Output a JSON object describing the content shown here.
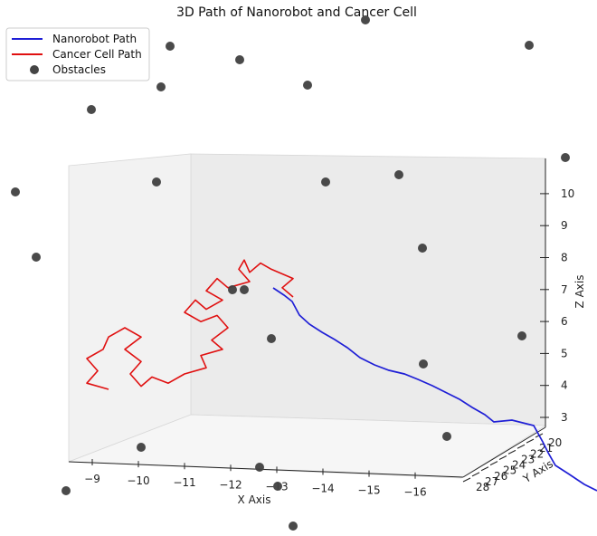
{
  "chart_data": {
    "type": "line3d",
    "title": "3D Path of Nanorobot and Cancer Cell",
    "xlabel": "X Axis",
    "ylabel": "Y Axis",
    "zlabel": "Z Axis",
    "x_ticks": [
      "−9",
      "−10",
      "−11",
      "−12",
      "−13",
      "−14",
      "−15",
      "−16"
    ],
    "y_ticks": [
      "20",
      "21",
      "22",
      "23",
      "24",
      "25",
      "26",
      "27",
      "28"
    ],
    "z_ticks": [
      "3",
      "4",
      "5",
      "6",
      "7",
      "8",
      "9",
      "10"
    ],
    "legend": {
      "position": "top-left",
      "entries": [
        {
          "label": "Nanorobot Path",
          "color": "#1f1fd6",
          "kind": "line"
        },
        {
          "label": "Cancer Cell Path",
          "color": "#e01010",
          "kind": "line"
        },
        {
          "label": "Obstacles",
          "color": "#444444",
          "kind": "marker"
        }
      ]
    },
    "series": [
      {
        "name": "Nanorobot Path",
        "color": "#1f1fd6",
        "points": [
          [
            -12.6,
            20.0,
            7.0
          ],
          [
            -12.8,
            20.3,
            6.8
          ],
          [
            -13.0,
            20.7,
            6.5
          ],
          [
            -13.4,
            21.2,
            6.2
          ],
          [
            -13.8,
            21.7,
            5.9
          ],
          [
            -14.2,
            22.2,
            5.5
          ],
          [
            -14.6,
            22.8,
            5.2
          ],
          [
            -15.0,
            23.3,
            4.9
          ],
          [
            -15.3,
            23.8,
            4.6
          ],
          [
            -15.6,
            24.3,
            4.2
          ],
          [
            -15.8,
            24.8,
            3.9
          ],
          [
            -15.9,
            25.2,
            3.5
          ],
          [
            -16.0,
            25.6,
            3.2
          ],
          [
            -16.0,
            26.0,
            3.0
          ],
          [
            -16.1,
            26.4,
            2.8
          ],
          [
            -16.1,
            26.8,
            2.6
          ],
          [
            -16.2,
            27.2,
            2.4
          ],
          [
            -16.3,
            27.6,
            2.2
          ],
          [
            -16.4,
            28.0,
            2.0
          ]
        ]
      },
      {
        "name": "Cancer Cell Path",
        "color": "#e01010",
        "points": [
          [
            -12.6,
            20.0,
            7.0
          ],
          [
            -12.4,
            20.0,
            7.3
          ],
          [
            -12.6,
            20.0,
            7.6
          ],
          [
            -12.2,
            20.0,
            7.9
          ],
          [
            -12.0,
            20.0,
            8.1
          ],
          [
            -11.8,
            20.0,
            7.8
          ],
          [
            -11.7,
            20.0,
            8.2
          ],
          [
            -11.6,
            20.0,
            7.9
          ],
          [
            -11.8,
            20.0,
            7.5
          ],
          [
            -11.4,
            20.0,
            7.3
          ],
          [
            -11.2,
            20.0,
            7.6
          ],
          [
            -11.0,
            20.0,
            7.2
          ],
          [
            -11.3,
            20.0,
            6.9
          ],
          [
            -11.0,
            20.0,
            6.6
          ],
          [
            -10.8,
            20.0,
            6.9
          ],
          [
            -10.6,
            20.0,
            6.5
          ],
          [
            -10.9,
            20.0,
            6.2
          ],
          [
            -11.2,
            20.0,
            6.4
          ],
          [
            -11.4,
            20.0,
            6.0
          ],
          [
            -11.1,
            20.0,
            5.6
          ],
          [
            -11.3,
            20.0,
            5.3
          ],
          [
            -10.9,
            20.0,
            5.1
          ],
          [
            -11.0,
            20.0,
            4.7
          ],
          [
            -10.6,
            20.0,
            4.5
          ],
          [
            -10.3,
            20.0,
            4.2
          ],
          [
            -10.0,
            20.0,
            4.4
          ],
          [
            -9.8,
            20.0,
            4.1
          ],
          [
            -9.6,
            20.0,
            4.5
          ],
          [
            -9.8,
            20.0,
            4.9
          ],
          [
            -9.5,
            20.0,
            5.3
          ],
          [
            -9.8,
            20.0,
            5.7
          ],
          [
            -9.5,
            20.0,
            6.0
          ],
          [
            -9.2,
            20.0,
            5.7
          ],
          [
            -9.1,
            20.0,
            5.3
          ],
          [
            -8.8,
            20.0,
            5.0
          ],
          [
            -9.0,
            20.0,
            4.6
          ],
          [
            -8.8,
            20.0,
            4.2
          ],
          [
            -9.2,
            20.0,
            4.0
          ]
        ]
      }
    ],
    "obstacles": [
      [
        -13.7,
        20.0,
        12.5
      ],
      [
        -16.8,
        20.0,
        12.5
      ],
      [
        -10.5,
        20.0,
        12.2
      ],
      [
        -12.0,
        20.0,
        12.0
      ],
      [
        -11.0,
        20.0,
        11.5
      ],
      [
        -13.0,
        20.0,
        11.5
      ],
      [
        -9.0,
        20.0,
        11.2
      ],
      [
        -17.2,
        20.0,
        10.5
      ],
      [
        -7.8,
        20.0,
        10.0
      ],
      [
        -10.2,
        20.0,
        10.2
      ],
      [
        -13.5,
        20.0,
        10.2
      ],
      [
        -14.5,
        20.0,
        10.4
      ],
      [
        -15.0,
        20.0,
        8.5
      ],
      [
        -8.2,
        20.0,
        8.0
      ],
      [
        -12.1,
        20.0,
        6.9
      ],
      [
        -12.4,
        20.0,
        6.9
      ],
      [
        -13.0,
        20.0,
        5.6
      ],
      [
        -16.9,
        20.0,
        5.6
      ],
      [
        -15.0,
        20.0,
        4.4
      ],
      [
        -15.6,
        20.0,
        3.0
      ],
      [
        -10.0,
        20.0,
        2.6
      ],
      [
        -12.3,
        20.0,
        2.2
      ],
      [
        -13.5,
        20.0,
        2.0
      ],
      [
        -8.7,
        20.0,
        1.9
      ],
      [
        -13.8,
        20.0,
        1.3
      ]
    ]
  }
}
